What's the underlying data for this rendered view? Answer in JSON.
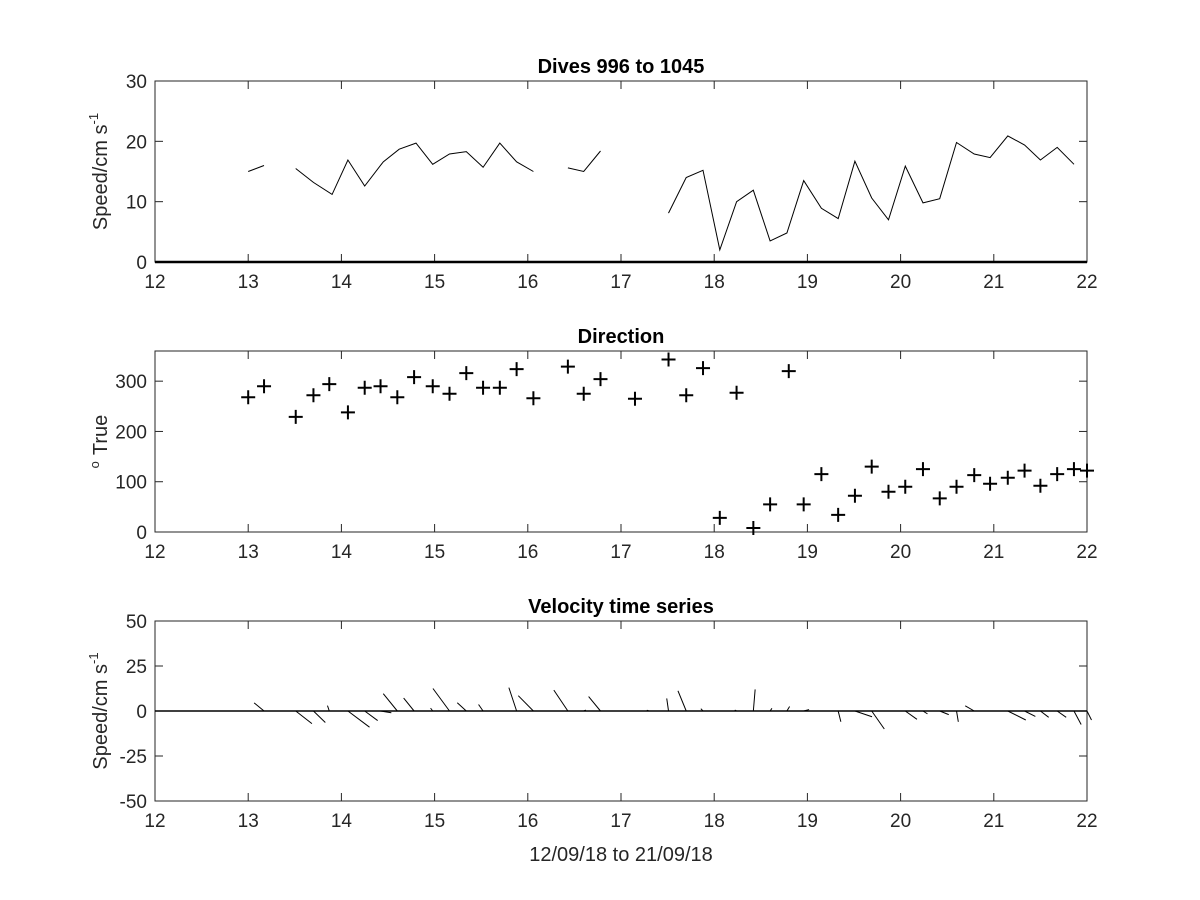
{
  "chart_data": [
    {
      "type": "line",
      "title": "Dives 996 to 1045",
      "ylabel": "Speed/cm s",
      "ylabel_sup": "-1",
      "xlim": [
        12,
        22
      ],
      "ylim": [
        0,
        30
      ],
      "xticks": [
        12,
        13,
        14,
        15,
        16,
        17,
        18,
        19,
        20,
        21,
        22
      ],
      "yticks": [
        0,
        10,
        20,
        30
      ],
      "grid": false,
      "zero_line": true,
      "segments": [
        [
          [
            13.0,
            15.0
          ],
          [
            13.17,
            16.0
          ]
        ],
        [
          [
            13.51,
            15.5
          ],
          [
            13.7,
            13.2
          ],
          [
            13.9,
            11.2
          ],
          [
            14.07,
            16.9
          ],
          [
            14.25,
            12.6
          ],
          [
            14.45,
            16.6
          ],
          [
            14.62,
            18.7
          ],
          [
            14.8,
            19.7
          ],
          [
            14.98,
            16.2
          ],
          [
            15.16,
            17.9
          ],
          [
            15.34,
            18.3
          ],
          [
            15.52,
            15.7
          ],
          [
            15.7,
            19.7
          ],
          [
            15.88,
            16.6
          ],
          [
            16.06,
            15.0
          ]
        ],
        [
          [
            16.43,
            15.6
          ],
          [
            16.6,
            15.0
          ],
          [
            16.78,
            18.4
          ]
        ],
        [
          [
            17.51,
            8.1
          ],
          [
            17.7,
            14.0
          ],
          [
            17.88,
            15.2
          ],
          [
            18.06,
            2.0
          ],
          [
            18.24,
            10.0
          ],
          [
            18.42,
            11.9
          ],
          [
            18.6,
            3.5
          ],
          [
            18.78,
            4.8
          ],
          [
            18.96,
            13.5
          ],
          [
            19.15,
            8.9
          ],
          [
            19.33,
            7.2
          ],
          [
            19.51,
            16.7
          ],
          [
            19.69,
            10.6
          ],
          [
            19.87,
            7.0
          ],
          [
            20.05,
            15.9
          ],
          [
            20.24,
            9.8
          ],
          [
            20.42,
            10.5
          ],
          [
            20.6,
            19.8
          ],
          [
            20.79,
            17.9
          ],
          [
            20.96,
            17.3
          ],
          [
            21.15,
            20.9
          ],
          [
            21.33,
            19.4
          ],
          [
            21.5,
            16.9
          ],
          [
            21.68,
            19.0
          ],
          [
            21.86,
            16.2
          ]
        ]
      ]
    },
    {
      "type": "scatter",
      "title": "Direction",
      "ylabel": "True",
      "ylabel_prefix_sup": "o",
      "marker": "+",
      "xlim": [
        12,
        22
      ],
      "ylim": [
        0,
        360
      ],
      "xticks": [
        12,
        13,
        14,
        15,
        16,
        17,
        18,
        19,
        20,
        21,
        22
      ],
      "yticks": [
        0,
        100,
        200,
        300
      ],
      "grid": false,
      "points": [
        [
          13.0,
          268
        ],
        [
          13.17,
          290
        ],
        [
          13.51,
          229
        ],
        [
          13.7,
          272
        ],
        [
          13.87,
          294
        ],
        [
          14.07,
          238
        ],
        [
          14.25,
          287
        ],
        [
          14.42,
          290
        ],
        [
          14.6,
          268
        ],
        [
          14.78,
          308
        ],
        [
          14.98,
          290
        ],
        [
          15.16,
          275
        ],
        [
          15.34,
          316
        ],
        [
          15.52,
          287
        ],
        [
          15.7,
          287
        ],
        [
          15.88,
          324
        ],
        [
          16.06,
          266
        ],
        [
          16.43,
          329
        ],
        [
          16.6,
          275
        ],
        [
          16.78,
          304
        ],
        [
          17.15,
          265
        ],
        [
          17.51,
          343
        ],
        [
          17.7,
          272
        ],
        [
          17.88,
          326
        ],
        [
          18.24,
          277
        ],
        [
          18.8,
          320
        ],
        [
          18.06,
          28
        ],
        [
          18.42,
          8
        ],
        [
          18.6,
          55
        ],
        [
          18.96,
          55
        ],
        [
          19.15,
          115
        ],
        [
          19.33,
          34
        ],
        [
          19.51,
          72
        ],
        [
          19.69,
          130
        ],
        [
          19.87,
          80
        ],
        [
          20.05,
          90
        ],
        [
          20.24,
          125
        ],
        [
          20.42,
          67
        ],
        [
          20.6,
          90
        ],
        [
          20.79,
          113
        ],
        [
          20.96,
          96
        ],
        [
          21.15,
          108
        ],
        [
          21.33,
          122
        ],
        [
          21.5,
          92
        ],
        [
          21.68,
          115
        ],
        [
          21.86,
          125
        ],
        [
          22.0,
          122
        ]
      ]
    },
    {
      "type": "quiver",
      "title": "Velocity time series",
      "ylabel": "Speed/cm s",
      "ylabel_sup": "-1",
      "xlabel": "12/09/18 to 21/09/18",
      "xlim": [
        12,
        22
      ],
      "ylim": [
        -50,
        50
      ],
      "xticks": [
        12,
        13,
        14,
        15,
        16,
        17,
        18,
        19,
        20,
        21,
        22
      ],
      "yticks": [
        -50,
        -25,
        0,
        25,
        50
      ],
      "ytick_labels": [
        "-50",
        "-25",
        "0",
        "25",
        "50"
      ],
      "grid": false,
      "zero_line": true,
      "sticks": [
        [
          13.17,
          -5.5,
          4.5
        ],
        [
          13.51,
          9.0,
          -7.0
        ],
        [
          13.7,
          6.6,
          -6.4
        ],
        [
          13.87,
          -1.0,
          3.0
        ],
        [
          14.07,
          12.0,
          -9.0
        ],
        [
          14.25,
          7.2,
          -5.3
        ],
        [
          14.42,
          6.0,
          -1.0
        ],
        [
          14.6,
          -7.8,
          9.6
        ],
        [
          14.78,
          -5.8,
          7.2
        ],
        [
          14.98,
          -1.2,
          1.6
        ],
        [
          15.16,
          -9.2,
          12.5
        ],
        [
          15.34,
          -5.0,
          4.6
        ],
        [
          15.52,
          -2.5,
          3.6
        ],
        [
          15.88,
          -4.3,
          13.0
        ],
        [
          16.06,
          -8.4,
          8.5
        ],
        [
          16.43,
          -7.8,
          11.6
        ],
        [
          16.6,
          1.2,
          0.5
        ],
        [
          16.78,
          -6.6,
          8.0
        ],
        [
          17.3,
          -1.2,
          0.4
        ],
        [
          17.51,
          -1.0,
          7.0
        ],
        [
          17.7,
          -4.6,
          11.2
        ],
        [
          17.88,
          -1.2,
          1.3
        ],
        [
          18.24,
          -1.0,
          0.5
        ],
        [
          18.42,
          1.0,
          12.0
        ],
        [
          18.6,
          1.0,
          1.5
        ],
        [
          18.78,
          1.5,
          2.5
        ],
        [
          18.96,
          3.0,
          0.8
        ],
        [
          19.33,
          1.5,
          -6.0
        ],
        [
          19.51,
          9.5,
          -3.2
        ],
        [
          19.69,
          7.0,
          -10.0
        ],
        [
          20.05,
          6.5,
          -4.6
        ],
        [
          20.24,
          2.5,
          -1.6
        ],
        [
          20.42,
          5.0,
          -2.0
        ],
        [
          20.6,
          1.0,
          -6.0
        ],
        [
          20.79,
          -5.0,
          2.9
        ],
        [
          21.15,
          10.0,
          -5.0
        ],
        [
          21.33,
          6.0,
          -3.0
        ],
        [
          21.5,
          4.6,
          -3.5
        ],
        [
          21.68,
          5.0,
          -3.5
        ],
        [
          21.86,
          4.0,
          -7.5
        ],
        [
          22.0,
          2.5,
          -5.0
        ]
      ]
    }
  ]
}
